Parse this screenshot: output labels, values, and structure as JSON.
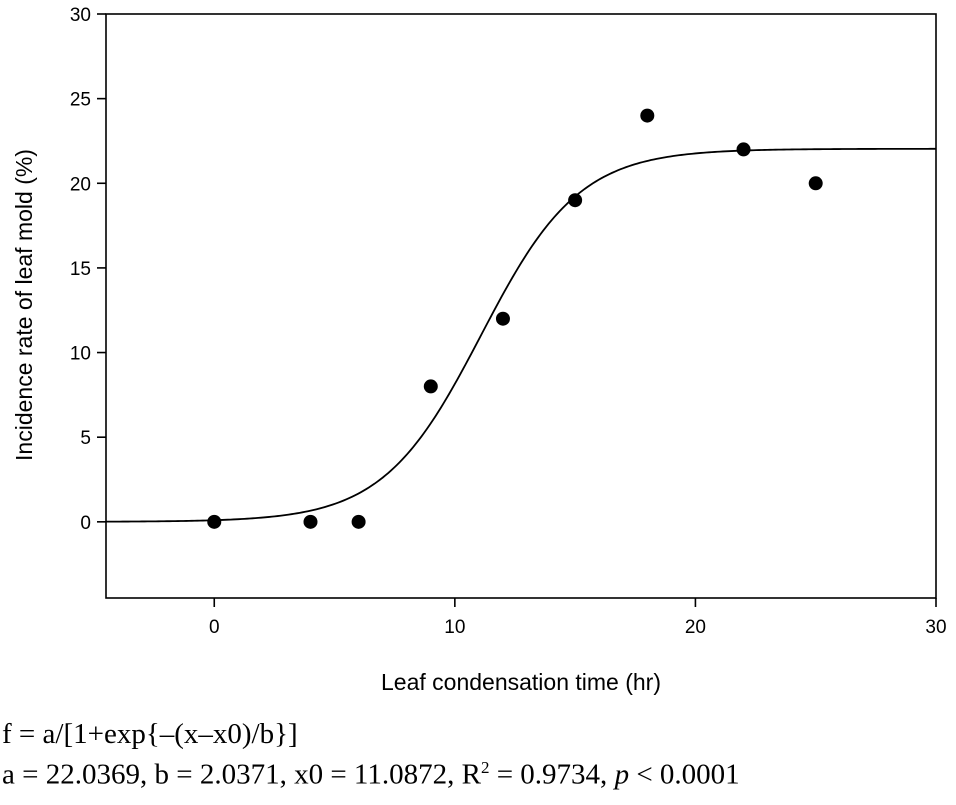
{
  "chart_data": {
    "type": "scatter",
    "title": "",
    "xlabel": "Leaf condensation time (hr)",
    "ylabel": "Incidence rate of leaf mold (%)",
    "xlim": [
      -4.5,
      30
    ],
    "ylim": [
      -4.5,
      30
    ],
    "x_ticks": [
      0,
      10,
      20,
      30
    ],
    "y_ticks": [
      0,
      5,
      10,
      15,
      20,
      25,
      30
    ],
    "grid": false,
    "legend": "none",
    "series": [
      {
        "type": "scatter",
        "x": [
          0,
          4,
          6,
          9,
          12,
          15,
          18,
          22,
          25
        ],
        "y": [
          0,
          0,
          0,
          8,
          12,
          19,
          24,
          22,
          20
        ]
      }
    ],
    "fit": {
      "model": "sigmoid",
      "a": 22.0369,
      "b": 2.0371,
      "x0": 11.0872
    }
  },
  "annotations": {
    "formula": "f = a/[1+exp{–(x–x0)/b}]",
    "params_prefix": "a = 22.0369,  b = 2.0371,  x0 = 11.0872,  R",
    "r2_sup": "2",
    "r2_value": " = 0.9734,  ",
    "p_symbol": "p",
    "p_value": " < 0.0001"
  },
  "colors": {
    "marker": "#000000",
    "line": "#000000",
    "axis": "#000000"
  }
}
